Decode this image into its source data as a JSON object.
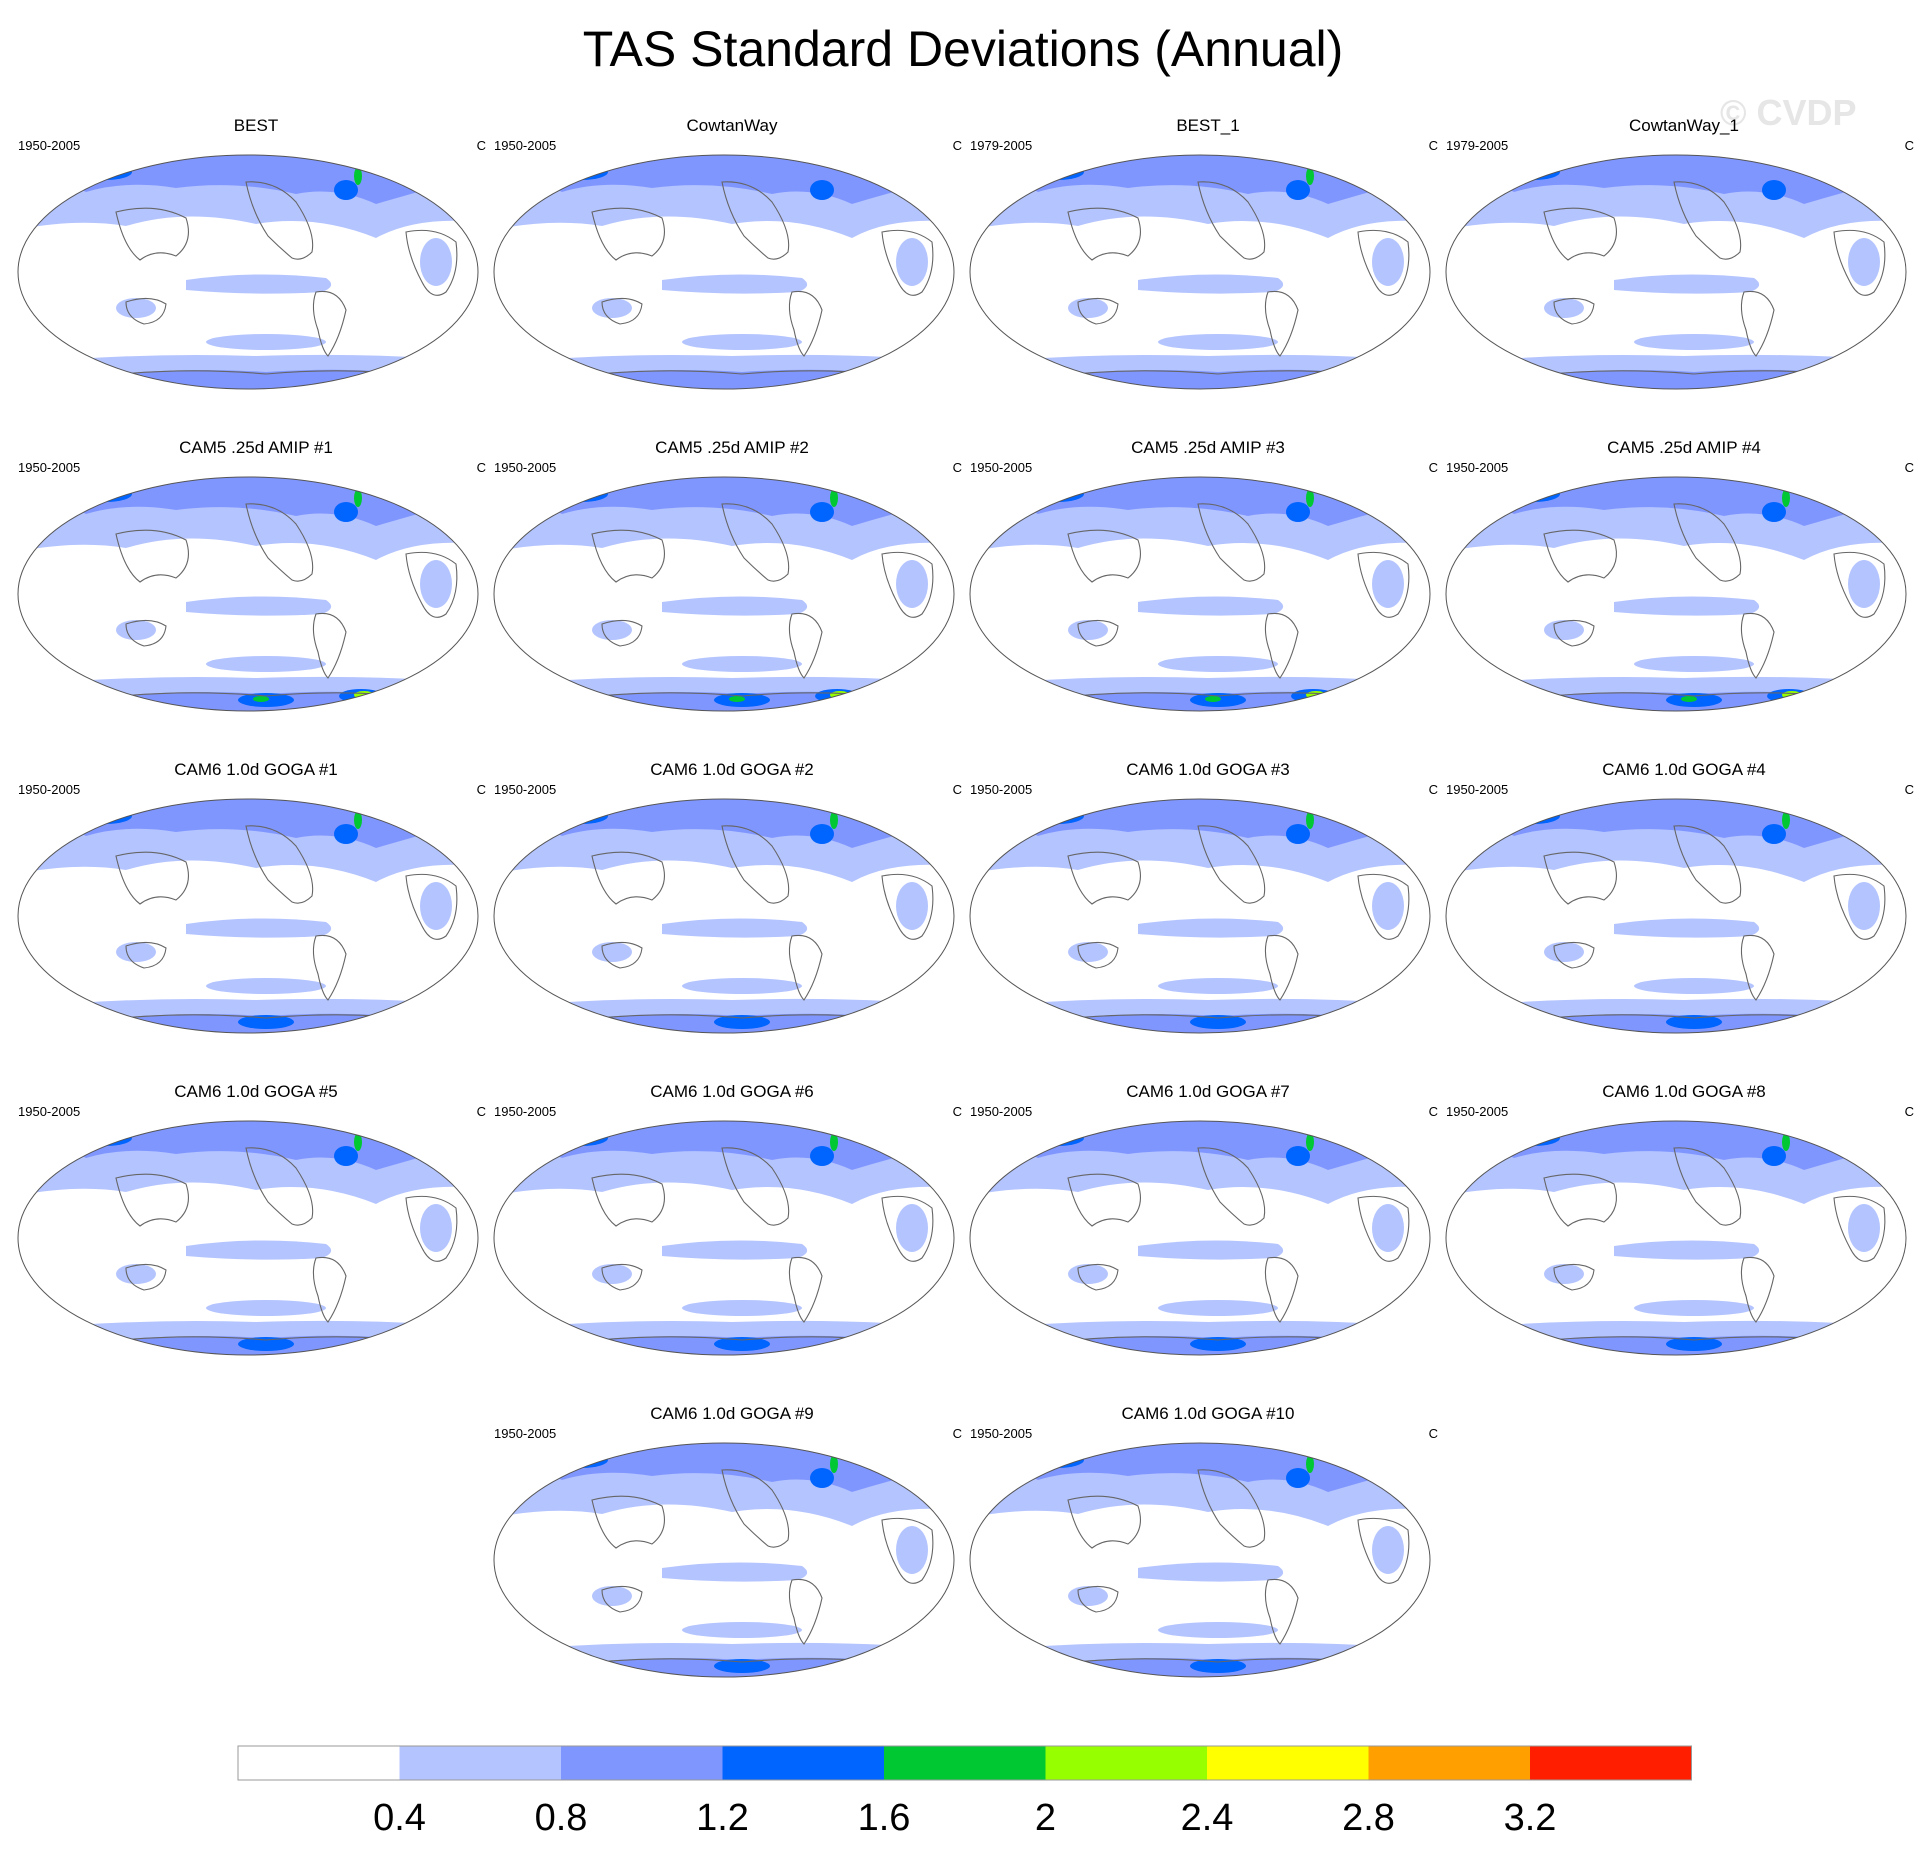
{
  "chart_data": {
    "type": "heatmap",
    "title": "TAS Standard Deviations (Annual)",
    "watermark": "© CVDP",
    "unit": "C",
    "panels": [
      {
        "title": "BEST",
        "period": "1950-2005",
        "unit": "C"
      },
      {
        "title": "CowtanWay",
        "period": "1950-2005",
        "unit": "C"
      },
      {
        "title": "BEST_1",
        "period": "1979-2005",
        "unit": "C"
      },
      {
        "title": "CowtanWay_1",
        "period": "1979-2005",
        "unit": "C"
      },
      {
        "title": "CAM5 .25d AMIP #1",
        "period": "1950-2005",
        "unit": "C"
      },
      {
        "title": "CAM5 .25d AMIP #2",
        "period": "1950-2005",
        "unit": "C"
      },
      {
        "title": "CAM5 .25d AMIP #3",
        "period": "1950-2005",
        "unit": "C"
      },
      {
        "title": "CAM5 .25d AMIP #4",
        "period": "1950-2005",
        "unit": "C"
      },
      {
        "title": "CAM6 1.0d GOGA #1",
        "period": "1950-2005",
        "unit": "C"
      },
      {
        "title": "CAM6 1.0d GOGA #2",
        "period": "1950-2005",
        "unit": "C"
      },
      {
        "title": "CAM6 1.0d GOGA #3",
        "period": "1950-2005",
        "unit": "C"
      },
      {
        "title": "CAM6 1.0d GOGA #4",
        "period": "1950-2005",
        "unit": "C"
      },
      {
        "title": "CAM6 1.0d GOGA #5",
        "period": "1950-2005",
        "unit": "C"
      },
      {
        "title": "CAM6 1.0d GOGA #6",
        "period": "1950-2005",
        "unit": "C"
      },
      {
        "title": "CAM6 1.0d GOGA #7",
        "period": "1950-2005",
        "unit": "C"
      },
      {
        "title": "CAM6 1.0d GOGA #8",
        "period": "1950-2005",
        "unit": "C"
      },
      {
        "title": "CAM6 1.0d GOGA #9",
        "period": "1950-2005",
        "unit": "C"
      },
      {
        "title": "CAM6 1.0d GOGA #10",
        "period": "1950-2005",
        "unit": "C"
      }
    ],
    "colorbar": {
      "ticks": [
        "0.4",
        "0.8",
        "1.2",
        "1.6",
        "2",
        "2.4",
        "2.8",
        "3.2"
      ],
      "colors": [
        "#ffffff",
        "#b4c4ff",
        "#8096ff",
        "#0064ff",
        "#00c832",
        "#96ff00",
        "#ffff00",
        "#ffa000",
        "#ff1e00"
      ]
    }
  }
}
